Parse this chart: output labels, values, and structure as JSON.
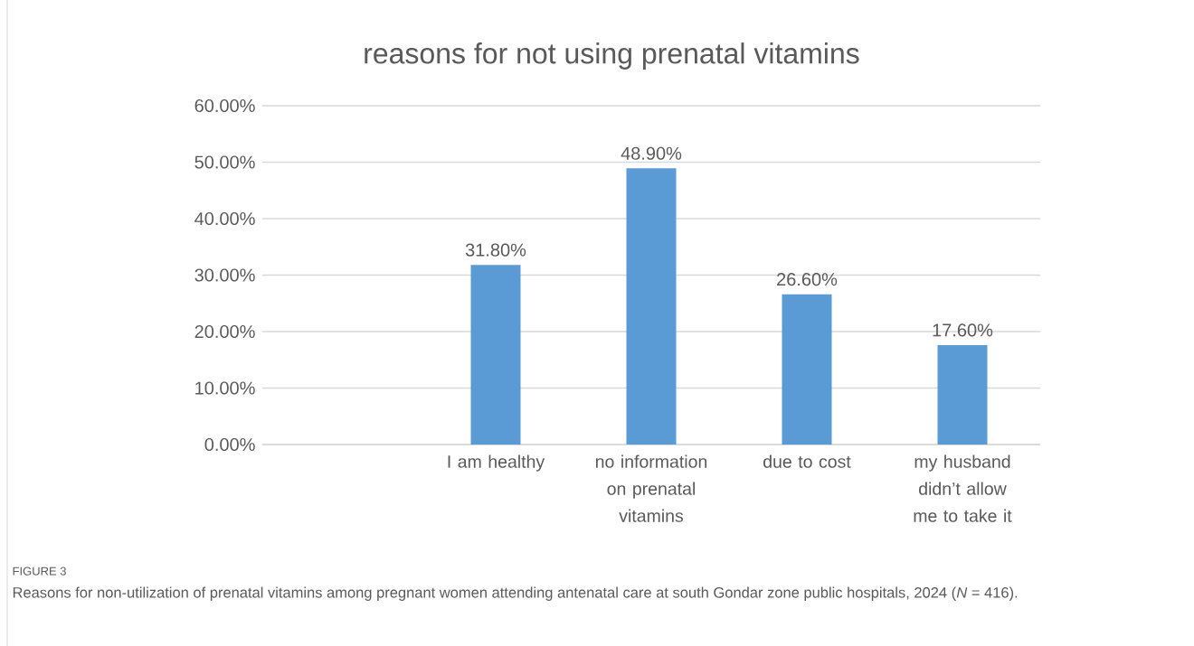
{
  "chart_data": {
    "type": "bar",
    "title": "reasons for not using prenatal vitamins",
    "categories": [
      null,
      "I am healthy",
      "no information on prenatal vitamins",
      "due to cost",
      "my husband didn’t allow me to take it"
    ],
    "values": [
      null,
      31.8,
      48.9,
      26.6,
      17.6
    ],
    "value_labels": [
      null,
      "31.80%",
      "48.90%",
      "26.60%",
      "17.60%"
    ],
    "color": "#5b9bd5",
    "ylim": [
      0,
      60
    ],
    "yticks": [
      {
        "value": 0,
        "label": "0.00%"
      },
      {
        "value": 10,
        "label": "10.00%"
      },
      {
        "value": 20,
        "label": "20.00%"
      },
      {
        "value": 30,
        "label": "30.00%"
      },
      {
        "value": 40,
        "label": "40.00%"
      },
      {
        "value": 50,
        "label": "50.00%"
      },
      {
        "value": 60,
        "label": "60.00%"
      }
    ],
    "grid": "y",
    "annotations": [
      "FIGURE 3",
      "Reasons for non-utilization of prenatal vitamins among pregnant women attending antenatal care at south Gondar zone public hospitals, 2024 (*N* = 416)."
    ]
  }
}
